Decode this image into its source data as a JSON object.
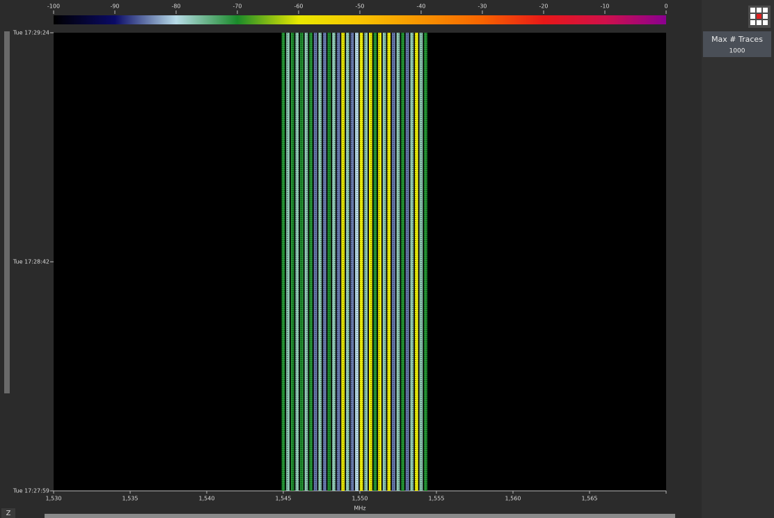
{
  "colorbar": {
    "lim": [
      -100,
      0
    ],
    "ticks": [
      -100,
      -90,
      -80,
      -70,
      -60,
      -50,
      -40,
      -30,
      -20,
      -10,
      0
    ],
    "colormap": [
      "#000000",
      "#0a0a66",
      "#b8dce8",
      "#1a8a2a",
      "#e8e800",
      "#f8c400",
      "#f89400",
      "#f86400",
      "#e81818",
      "#d0104a",
      "#8a0090"
    ]
  },
  "waterfall": {
    "xlabel": "MHz",
    "xlim": [
      1530,
      1570
    ],
    "xticks": [
      {
        "value": 1530,
        "label": "1,530"
      },
      {
        "value": 1535,
        "label": "1,535"
      },
      {
        "value": 1540,
        "label": "1,540"
      },
      {
        "value": 1545,
        "label": "1,545"
      },
      {
        "value": 1550,
        "label": "1,550"
      },
      {
        "value": 1555,
        "label": "1,555"
      },
      {
        "value": 1560,
        "label": "1,560"
      },
      {
        "value": 1565,
        "label": "1,565"
      }
    ],
    "timeticks": [
      "Tue 17:29:24",
      "Tue 17:28:42",
      "Tue 17:27:59"
    ],
    "channels": [
      {
        "freq": 1545.0,
        "power": -70
      },
      {
        "freq": 1545.3,
        "power": -77
      },
      {
        "freq": 1545.6,
        "power": -70
      },
      {
        "freq": 1545.9,
        "power": -77
      },
      {
        "freq": 1546.2,
        "power": -70
      },
      {
        "freq": 1546.5,
        "power": -77
      },
      {
        "freq": 1546.8,
        "power": -70
      },
      {
        "freq": 1547.1,
        "power": -85
      },
      {
        "freq": 1547.4,
        "power": -77
      },
      {
        "freq": 1547.7,
        "power": -85
      },
      {
        "freq": 1548.0,
        "power": -70
      },
      {
        "freq": 1548.3,
        "power": -77
      },
      {
        "freq": 1548.6,
        "power": -85
      },
      {
        "freq": 1548.9,
        "power": -60
      },
      {
        "freq": 1549.2,
        "power": -77
      },
      {
        "freq": 1549.5,
        "power": -85
      },
      {
        "freq": 1549.8,
        "power": -80
      },
      {
        "freq": 1550.1,
        "power": -60
      },
      {
        "freq": 1550.4,
        "power": -77
      },
      {
        "freq": 1550.7,
        "power": -60
      },
      {
        "freq": 1551.0,
        "power": -70
      },
      {
        "freq": 1551.3,
        "power": -60
      },
      {
        "freq": 1551.6,
        "power": -77
      },
      {
        "freq": 1551.9,
        "power": -60
      },
      {
        "freq": 1552.2,
        "power": -85
      },
      {
        "freq": 1552.5,
        "power": -77
      },
      {
        "freq": 1552.8,
        "power": -70
      },
      {
        "freq": 1553.1,
        "power": -85
      },
      {
        "freq": 1553.4,
        "power": -77
      },
      {
        "freq": 1553.7,
        "power": -60
      },
      {
        "freq": 1554.0,
        "power": -77
      },
      {
        "freq": 1554.3,
        "power": -70
      }
    ]
  },
  "panel": {
    "button_title": "Max # Traces",
    "button_value": "1000"
  },
  "corner": {
    "label": "Z"
  }
}
